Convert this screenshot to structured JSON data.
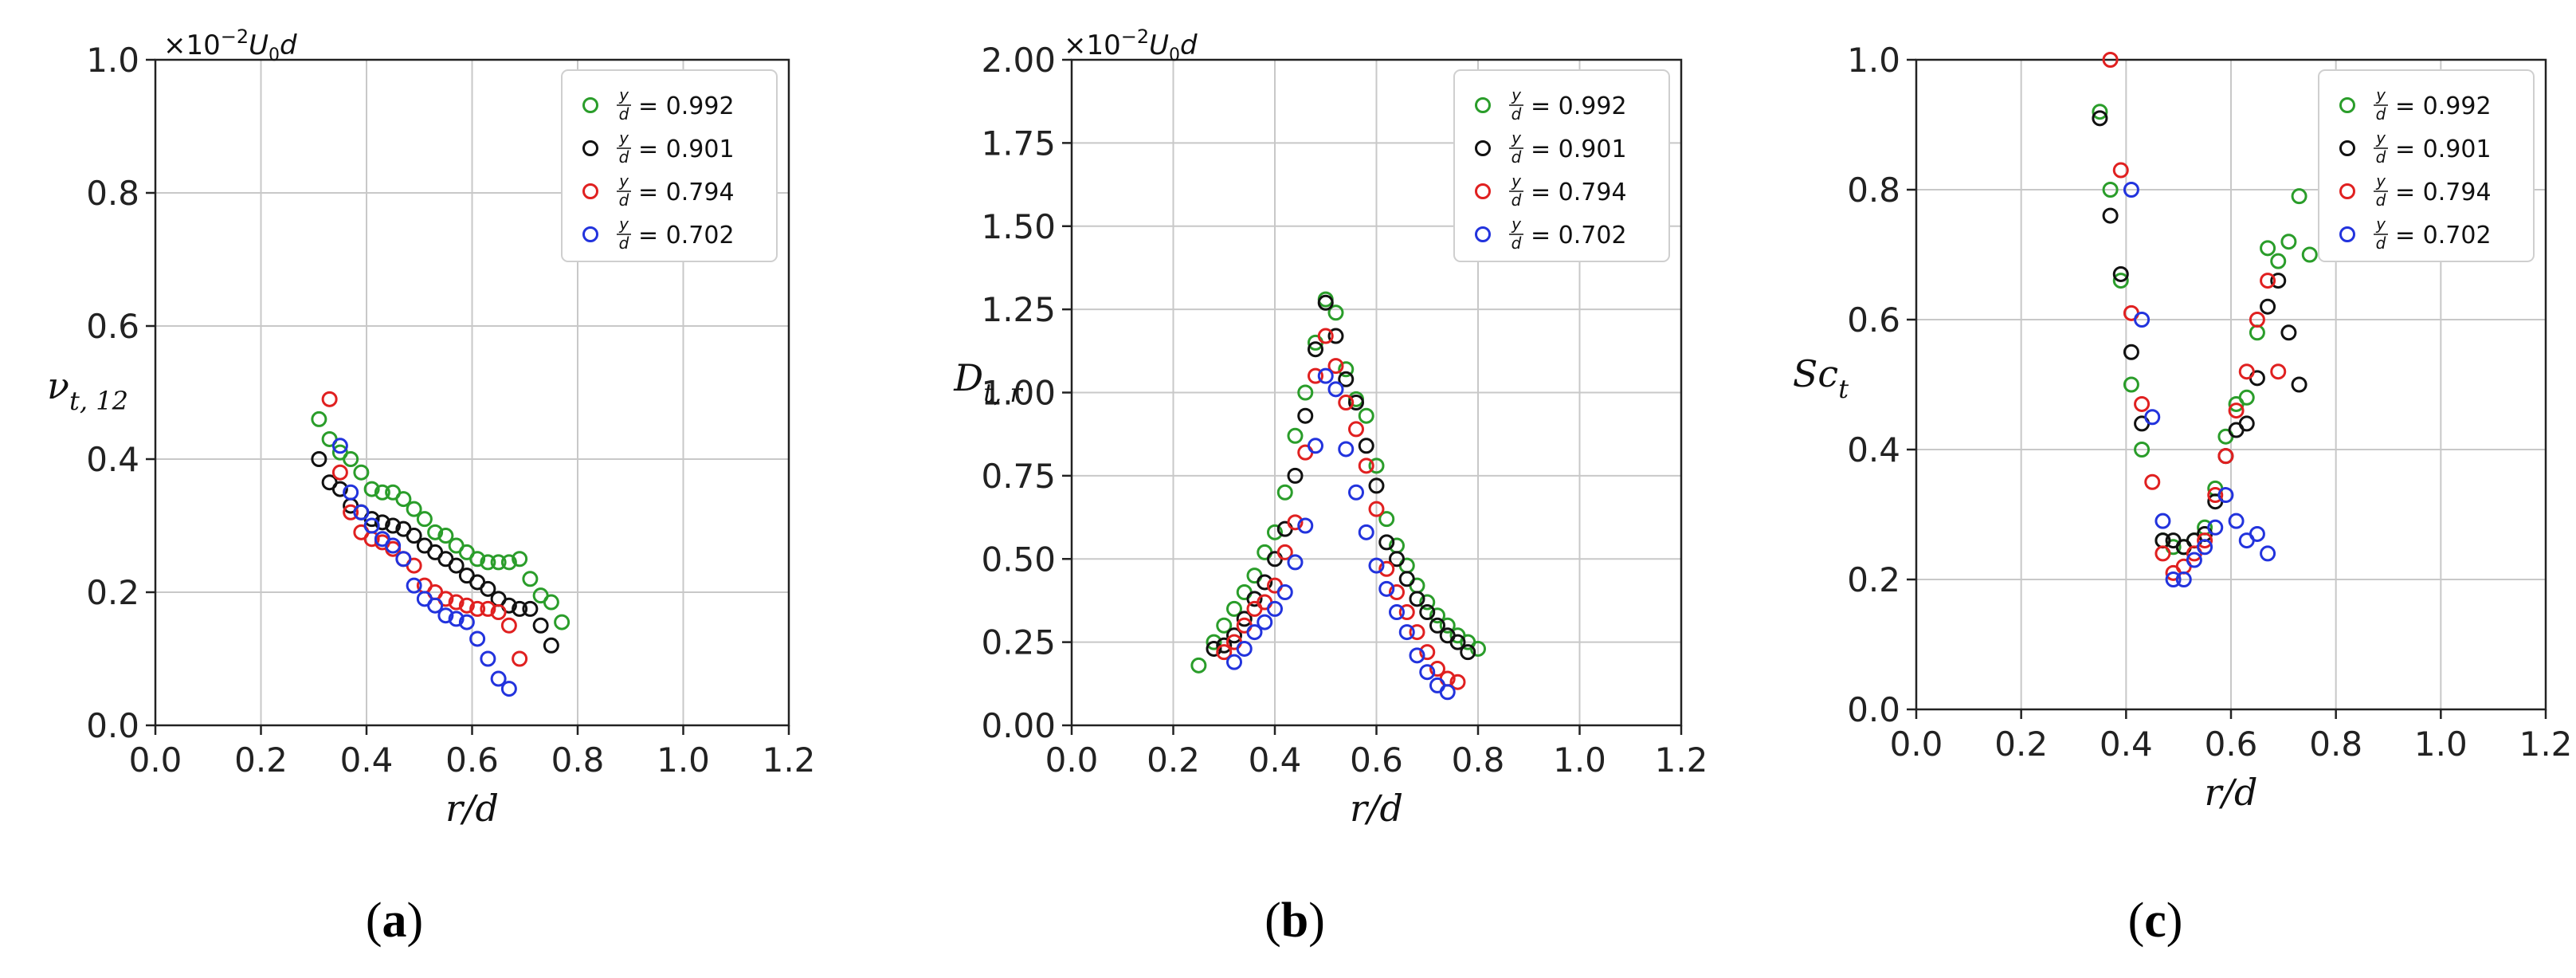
{
  "panels": [
    {
      "caption_letter": "a",
      "caption_open": "(",
      "caption_close": ")",
      "multiplier_prefix": "×10",
      "multiplier_exp": "−2",
      "multiplier_suffix": "U",
      "multiplier_sub": "0",
      "multiplier_tail": "d"
    },
    {
      "caption_letter": "b",
      "caption_open": "(",
      "caption_close": ")",
      "multiplier_prefix": "×10",
      "multiplier_exp": "−2",
      "multiplier_suffix": "U",
      "multiplier_sub": "0",
      "multiplier_tail": "d"
    },
    {
      "caption_letter": "c",
      "caption_open": "(",
      "caption_close": ")"
    }
  ],
  "legend_fraction": {
    "numerator": "y",
    "denominator": "d",
    "equals": "="
  },
  "chart_data": [
    {
      "type": "scatter",
      "title": "",
      "xlabel": "r/d",
      "ylabel_main": "ν",
      "ylabel_sub": "t, 12",
      "multiplier": "×10^-2 U0 d",
      "xlim": [
        0.0,
        1.2
      ],
      "ylim": [
        0.0,
        1.0
      ],
      "xticks": [
        "0.0",
        "0.2",
        "0.4",
        "0.6",
        "0.8",
        "1.0",
        "1.2"
      ],
      "yticks": [
        "0.0",
        "0.2",
        "0.4",
        "0.6",
        "0.8",
        "1.0"
      ],
      "ytick_values": [
        0.0,
        0.2,
        0.4,
        0.6,
        0.8,
        1.0
      ],
      "legend_position": "top-right",
      "grid": true,
      "series": [
        {
          "name": "0.992",
          "color": "#2a9d2a",
          "x": [
            0.31,
            0.33,
            0.35,
            0.37,
            0.39,
            0.41,
            0.43,
            0.45,
            0.47,
            0.49,
            0.51,
            0.53,
            0.55,
            0.57,
            0.59,
            0.61,
            0.63,
            0.65,
            0.67,
            0.69,
            0.71,
            0.73,
            0.75,
            0.77
          ],
          "y": [
            0.46,
            0.43,
            0.41,
            0.4,
            0.38,
            0.355,
            0.35,
            0.35,
            0.34,
            0.325,
            0.31,
            0.29,
            0.285,
            0.27,
            0.26,
            0.25,
            0.245,
            0.245,
            0.245,
            0.25,
            0.22,
            0.195,
            0.185,
            0.155
          ]
        },
        {
          "name": "0.901",
          "color": "#111111",
          "x": [
            0.31,
            0.33,
            0.35,
            0.37,
            0.39,
            0.41,
            0.43,
            0.45,
            0.47,
            0.49,
            0.51,
            0.53,
            0.55,
            0.57,
            0.59,
            0.61,
            0.63,
            0.65,
            0.67,
            0.69,
            0.71,
            0.73,
            0.75
          ],
          "y": [
            0.4,
            0.365,
            0.355,
            0.33,
            0.32,
            0.31,
            0.305,
            0.3,
            0.295,
            0.285,
            0.27,
            0.26,
            0.25,
            0.24,
            0.225,
            0.215,
            0.205,
            0.19,
            0.18,
            0.175,
            0.175,
            0.15,
            0.12
          ]
        },
        {
          "name": "0.794",
          "color": "#e02020",
          "x": [
            0.33,
            0.35,
            0.37,
            0.39,
            0.41,
            0.43,
            0.45,
            0.47,
            0.49,
            0.51,
            0.53,
            0.55,
            0.57,
            0.59,
            0.61,
            0.63,
            0.65,
            0.67,
            0.69
          ],
          "y": [
            0.49,
            0.38,
            0.32,
            0.29,
            0.28,
            0.275,
            0.265,
            0.25,
            0.24,
            0.21,
            0.2,
            0.19,
            0.185,
            0.18,
            0.175,
            0.175,
            0.17,
            0.15,
            0.1
          ]
        },
        {
          "name": "0.702",
          "color": "#2233dd",
          "x": [
            0.35,
            0.37,
            0.39,
            0.41,
            0.43,
            0.45,
            0.47,
            0.49,
            0.51,
            0.53,
            0.55,
            0.57,
            0.59,
            0.61,
            0.63,
            0.65,
            0.67
          ],
          "y": [
            0.42,
            0.35,
            0.32,
            0.3,
            0.28,
            0.27,
            0.25,
            0.21,
            0.19,
            0.18,
            0.165,
            0.16,
            0.155,
            0.13,
            0.1,
            0.07,
            0.055
          ]
        }
      ]
    },
    {
      "type": "scatter",
      "title": "",
      "xlabel": "r/d",
      "ylabel_main": "D",
      "ylabel_sub": "t, r",
      "multiplier": "×10^-2 U0 d",
      "xlim": [
        0.0,
        1.2
      ],
      "ylim": [
        0.0,
        2.0
      ],
      "xticks": [
        "0.0",
        "0.2",
        "0.4",
        "0.6",
        "0.8",
        "1.0",
        "1.2"
      ],
      "yticks": [
        "0.00",
        "0.25",
        "0.50",
        "0.75",
        "1.00",
        "1.25",
        "1.50",
        "1.75",
        "2.00"
      ],
      "ytick_values": [
        0.0,
        0.25,
        0.5,
        0.75,
        1.0,
        1.25,
        1.5,
        1.75,
        2.0
      ],
      "legend_position": "top-right",
      "grid": true,
      "series": [
        {
          "name": "0.992",
          "color": "#2a9d2a",
          "x": [
            0.25,
            0.28,
            0.3,
            0.32,
            0.34,
            0.36,
            0.38,
            0.4,
            0.42,
            0.44,
            0.46,
            0.48,
            0.5,
            0.52,
            0.54,
            0.56,
            0.58,
            0.6,
            0.62,
            0.64,
            0.66,
            0.68,
            0.7,
            0.72,
            0.74,
            0.76,
            0.78,
            0.8
          ],
          "y": [
            0.18,
            0.25,
            0.3,
            0.35,
            0.4,
            0.45,
            0.52,
            0.58,
            0.7,
            0.87,
            1.0,
            1.15,
            1.28,
            1.24,
            1.07,
            0.98,
            0.93,
            0.78,
            0.62,
            0.54,
            0.48,
            0.42,
            0.37,
            0.33,
            0.3,
            0.27,
            0.25,
            0.23
          ]
        },
        {
          "name": "0.901",
          "color": "#111111",
          "x": [
            0.28,
            0.3,
            0.32,
            0.34,
            0.36,
            0.38,
            0.4,
            0.42,
            0.44,
            0.46,
            0.48,
            0.5,
            0.52,
            0.54,
            0.56,
            0.58,
            0.6,
            0.62,
            0.64,
            0.66,
            0.68,
            0.7,
            0.72,
            0.74,
            0.76,
            0.78
          ],
          "y": [
            0.23,
            0.24,
            0.27,
            0.32,
            0.38,
            0.43,
            0.5,
            0.59,
            0.75,
            0.93,
            1.13,
            1.27,
            1.17,
            1.04,
            0.97,
            0.84,
            0.72,
            0.55,
            0.5,
            0.44,
            0.38,
            0.34,
            0.3,
            0.27,
            0.25,
            0.22
          ]
        },
        {
          "name": "0.794",
          "color": "#e02020",
          "x": [
            0.3,
            0.32,
            0.34,
            0.36,
            0.38,
            0.4,
            0.42,
            0.44,
            0.46,
            0.48,
            0.5,
            0.52,
            0.54,
            0.56,
            0.58,
            0.6,
            0.62,
            0.64,
            0.66,
            0.68,
            0.7,
            0.72,
            0.74,
            0.76
          ],
          "y": [
            0.22,
            0.25,
            0.3,
            0.35,
            0.37,
            0.42,
            0.52,
            0.61,
            0.82,
            1.05,
            1.17,
            1.08,
            0.97,
            0.89,
            0.78,
            0.65,
            0.47,
            0.4,
            0.34,
            0.28,
            0.22,
            0.17,
            0.14,
            0.13
          ]
        },
        {
          "name": "0.702",
          "color": "#2233dd",
          "x": [
            0.32,
            0.34,
            0.36,
            0.38,
            0.4,
            0.42,
            0.44,
            0.46,
            0.48,
            0.5,
            0.52,
            0.54,
            0.56,
            0.58,
            0.6,
            0.62,
            0.64,
            0.66,
            0.68,
            0.7,
            0.72,
            0.74
          ],
          "y": [
            0.19,
            0.23,
            0.28,
            0.31,
            0.35,
            0.4,
            0.49,
            0.6,
            0.84,
            1.05,
            1.01,
            0.83,
            0.7,
            0.58,
            0.48,
            0.41,
            0.34,
            0.28,
            0.21,
            0.16,
            0.12,
            0.1
          ]
        }
      ]
    },
    {
      "type": "scatter",
      "title": "",
      "xlabel": "r/d",
      "ylabel_main": "Sc",
      "ylabel_sub": "t",
      "multiplier": "",
      "xlim": [
        0.0,
        1.2
      ],
      "ylim": [
        0.0,
        1.0
      ],
      "xticks": [
        "0.0",
        "0.2",
        "0.4",
        "0.6",
        "0.8",
        "1.0",
        "1.2"
      ],
      "yticks": [
        "0.0",
        "0.2",
        "0.4",
        "0.6",
        "0.8",
        "1.0"
      ],
      "ytick_values": [
        0.0,
        0.2,
        0.4,
        0.6,
        0.8,
        1.0
      ],
      "legend_position": "top-right",
      "grid": true,
      "series": [
        {
          "name": "0.992",
          "color": "#2a9d2a",
          "x": [
            0.35,
            0.37,
            0.39,
            0.41,
            0.43,
            0.47,
            0.49,
            0.51,
            0.53,
            0.55,
            0.57,
            0.59,
            0.61,
            0.63,
            0.65,
            0.67,
            0.69,
            0.71,
            0.73,
            0.75
          ],
          "y": [
            0.92,
            0.8,
            0.66,
            0.5,
            0.4,
            0.26,
            0.25,
            0.25,
            0.26,
            0.28,
            0.34,
            0.42,
            0.47,
            0.48,
            0.58,
            0.71,
            0.69,
            0.72,
            0.79,
            0.7
          ]
        },
        {
          "name": "0.901",
          "color": "#111111",
          "x": [
            0.35,
            0.37,
            0.39,
            0.41,
            0.43,
            0.47,
            0.49,
            0.51,
            0.53,
            0.55,
            0.57,
            0.59,
            0.61,
            0.63,
            0.65,
            0.67,
            0.69,
            0.71,
            0.73
          ],
          "y": [
            0.91,
            0.76,
            0.67,
            0.55,
            0.44,
            0.26,
            0.26,
            0.25,
            0.26,
            0.27,
            0.32,
            0.39,
            0.43,
            0.44,
            0.51,
            0.62,
            0.66,
            0.58,
            0.5
          ]
        },
        {
          "name": "0.794",
          "color": "#e02020",
          "x": [
            0.37,
            0.39,
            0.41,
            0.43,
            0.45,
            0.47,
            0.49,
            0.51,
            0.53,
            0.55,
            0.57,
            0.59,
            0.61,
            0.63,
            0.65,
            0.67,
            0.69
          ],
          "y": [
            1.0,
            0.83,
            0.61,
            0.47,
            0.35,
            0.24,
            0.21,
            0.22,
            0.24,
            0.26,
            0.33,
            0.39,
            0.46,
            0.52,
            0.6,
            0.66,
            0.52
          ]
        },
        {
          "name": "0.702",
          "color": "#2233dd",
          "x": [
            0.41,
            0.43,
            0.45,
            0.47,
            0.49,
            0.51,
            0.53,
            0.55,
            0.57,
            0.59,
            0.61,
            0.63,
            0.65,
            0.67
          ],
          "y": [
            0.8,
            0.6,
            0.45,
            0.29,
            0.2,
            0.2,
            0.23,
            0.25,
            0.28,
            0.33,
            0.29,
            0.26,
            0.27,
            0.24
          ]
        }
      ]
    }
  ]
}
